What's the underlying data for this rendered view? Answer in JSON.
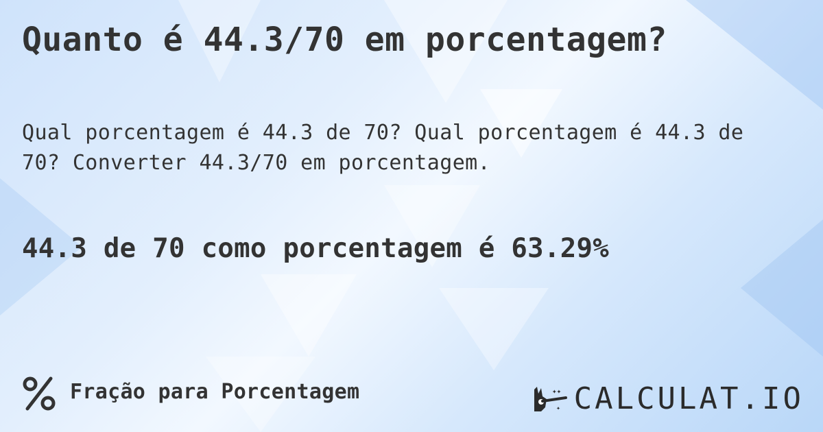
{
  "title": "Quanto é 44.3/70 em porcentagem?",
  "description": "Qual porcentagem é 44.3 de 70? Qual porcentagem é 44.3 de 70? Converter 44.3/70 em porcentagem.",
  "result": "44.3 de 70 como porcentagem é 63.29%",
  "footer": {
    "icon": "percent-icon",
    "label": "Fração para Porcentagem"
  },
  "logo": {
    "text": "CALCULAT.IO",
    "icon": "magic-hand-icon"
  },
  "colors": {
    "text": "#333333",
    "background": "#d6e8fc"
  }
}
